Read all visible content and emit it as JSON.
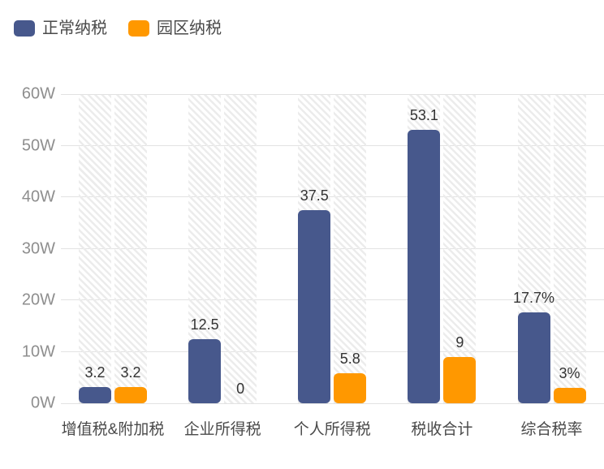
{
  "legend": {
    "items": [
      {
        "label": "正常纳税",
        "color": "#47588C"
      },
      {
        "label": "园区纳税",
        "color": "#FF9800"
      }
    ]
  },
  "chart_data": {
    "type": "bar",
    "title": "",
    "categories": [
      "增值税&附加税",
      "企业所得税",
      "个人所得税",
      "税收合计",
      "综合税率"
    ],
    "series": [
      {
        "name": "正常纳税",
        "color": "#47588C",
        "values": [
          3.2,
          12.5,
          37.5,
          53.1,
          17.7
        ],
        "labels": [
          "3.2",
          "12.5",
          "37.5",
          "53.1",
          "17.7%"
        ]
      },
      {
        "name": "园区纳税",
        "color": "#FF9800",
        "values": [
          3.2,
          0,
          5.8,
          9,
          3
        ],
        "labels": [
          "3.2",
          "0",
          "5.8",
          "9",
          "3%"
        ]
      }
    ],
    "ylim": [
      0,
      60
    ],
    "yticks": [
      {
        "value": 0,
        "label": "0W"
      },
      {
        "value": 10,
        "label": "10W"
      },
      {
        "value": 20,
        "label": "20W"
      },
      {
        "value": 30,
        "label": "30W"
      },
      {
        "value": 40,
        "label": "40W"
      },
      {
        "value": 50,
        "label": "50W"
      },
      {
        "value": 60,
        "label": "60W"
      }
    ],
    "grid": true,
    "legend_position": "top-left",
    "background_hatch": true,
    "colors": {
      "grid_line": "#e2e2e2",
      "hatch_stripe": "#ececec",
      "y_label": "#8e8e8e",
      "x_label": "#4a4a4a",
      "value_label": "#333333"
    }
  }
}
